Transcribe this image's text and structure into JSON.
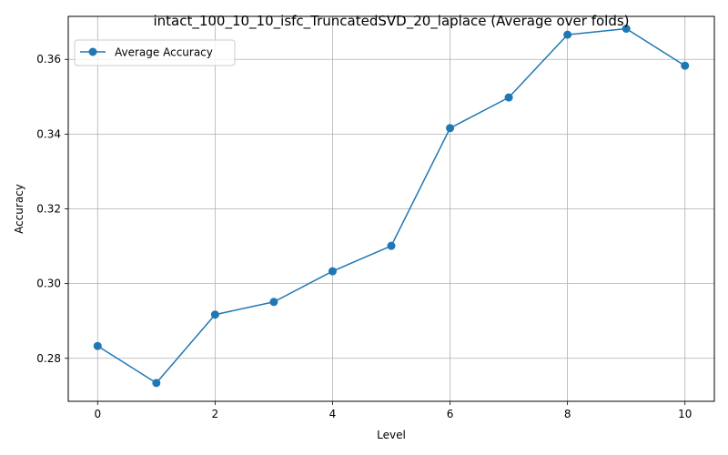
{
  "chart_data": {
    "type": "line",
    "title": "intact_100_10_10_isfc_TruncatedSVD_20_laplace (Average over folds)",
    "xlabel": "Level",
    "ylabel": "Accuracy",
    "xlim": [
      -0.5,
      10.5
    ],
    "ylim": [
      0.2685,
      0.3715
    ],
    "x_ticks": [
      0,
      2,
      4,
      6,
      8,
      10
    ],
    "y_ticks": [
      0.28,
      0.3,
      0.32,
      0.34,
      0.36
    ],
    "grid": true,
    "legend_position": "top-left",
    "series": [
      {
        "name": "Average Accuracy",
        "color": "#1f77b4",
        "marker": "circle",
        "x": [
          0,
          1,
          2,
          3,
          4,
          5,
          6,
          7,
          8,
          9,
          10
        ],
        "y": [
          0.2833,
          0.2734,
          0.2917,
          0.2951,
          0.3033,
          0.3101,
          0.3416,
          0.3498,
          0.3666,
          0.3682,
          0.3583
        ]
      }
    ]
  }
}
